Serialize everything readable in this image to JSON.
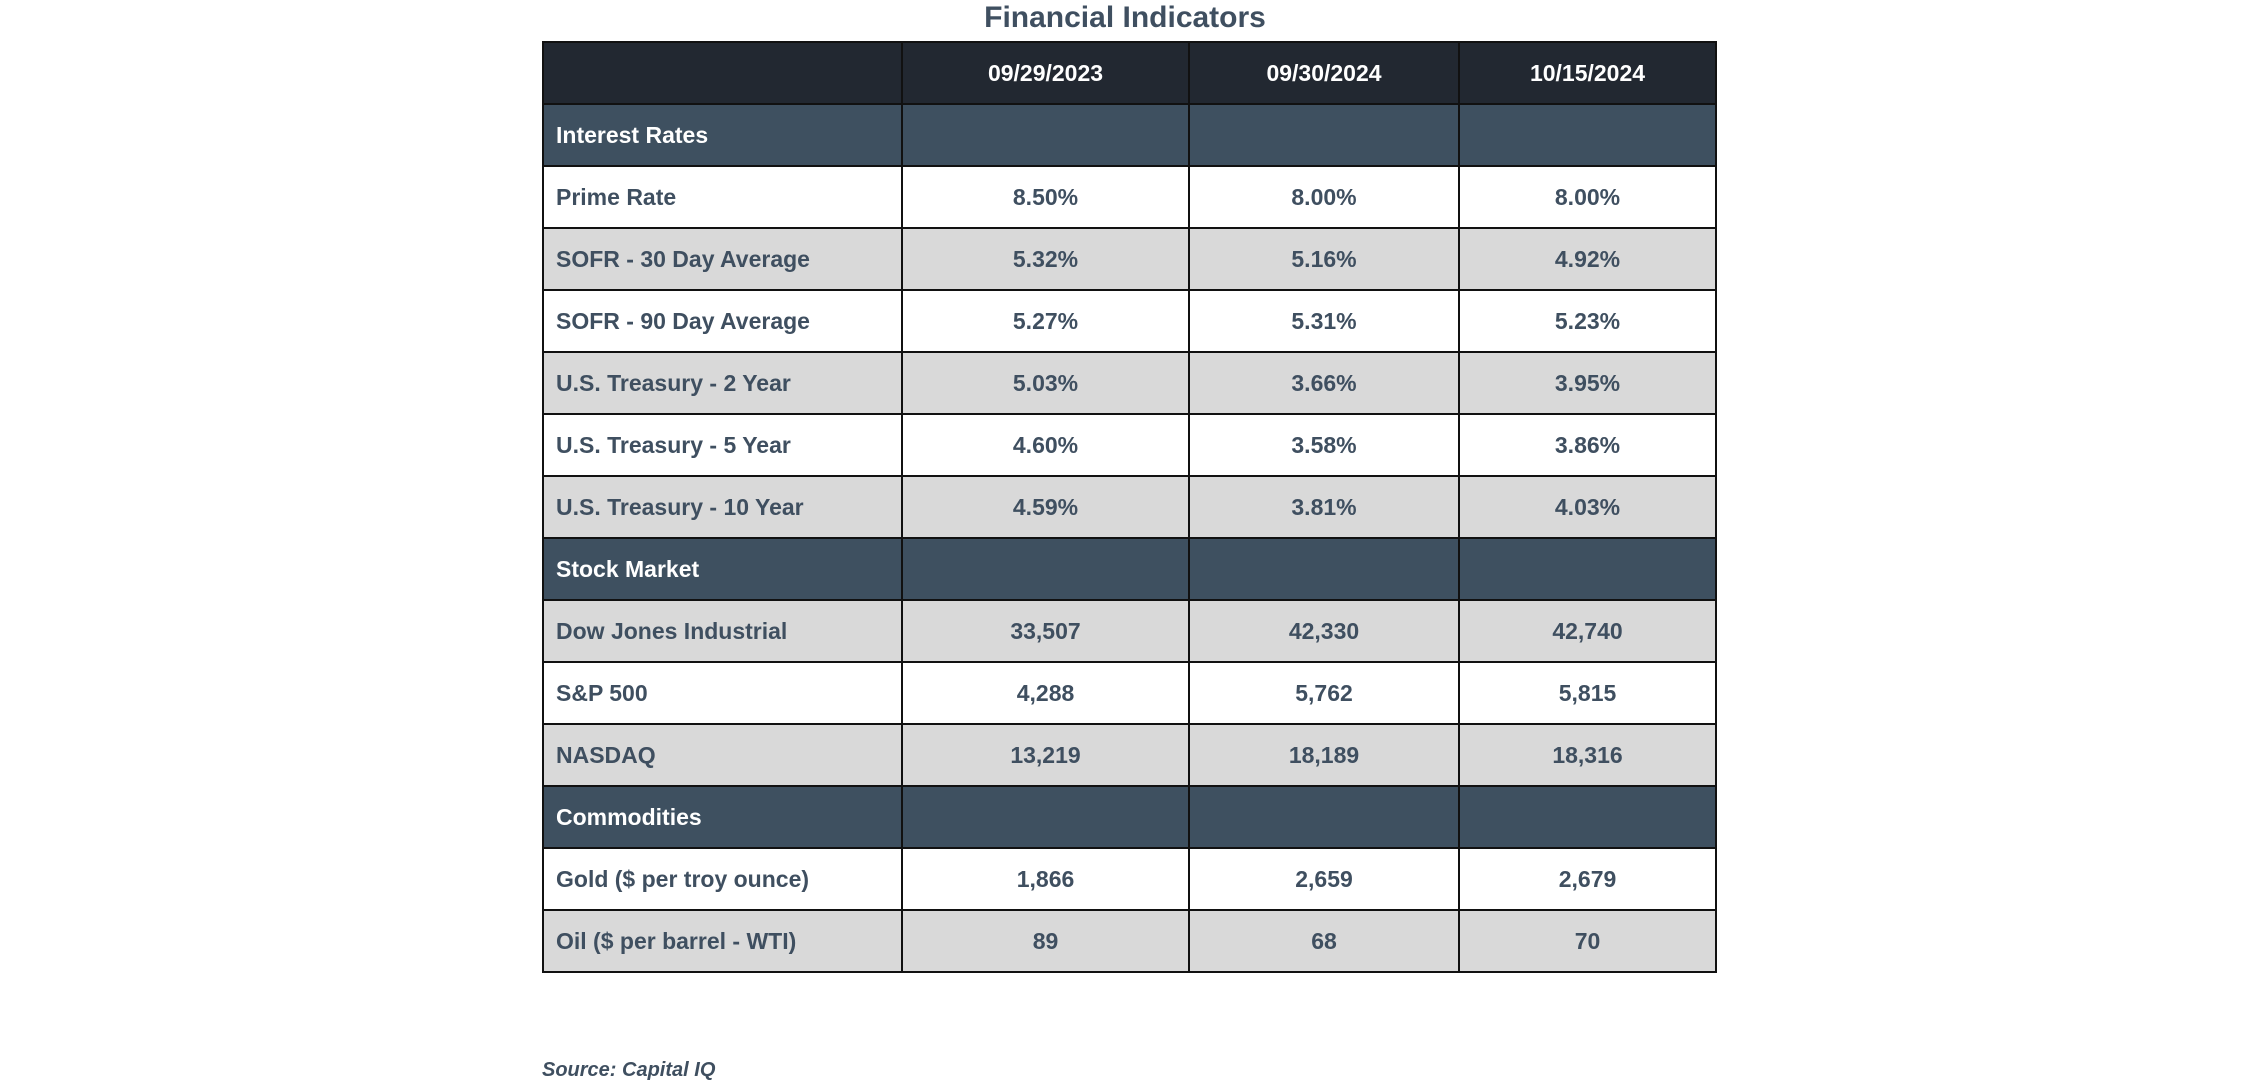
{
  "title": "Financial Indicators",
  "columns": [
    "",
    "09/29/2023",
    "09/30/2024",
    "10/15/2024"
  ],
  "sections": [
    {
      "name": "Interest Rates",
      "rows": [
        {
          "label": "Prime Rate",
          "values": [
            "8.50%",
            "8.00%",
            "8.00%"
          ]
        },
        {
          "label": "SOFR - 30 Day Average",
          "values": [
            "5.32%",
            "5.16%",
            "4.92%"
          ]
        },
        {
          "label": "SOFR - 90 Day Average",
          "values": [
            "5.27%",
            "5.31%",
            "5.23%"
          ]
        },
        {
          "label": "U.S. Treasury - 2 Year",
          "values": [
            "5.03%",
            "3.66%",
            "3.95%"
          ]
        },
        {
          "label": "U.S. Treasury - 5 Year",
          "values": [
            "4.60%",
            "3.58%",
            "3.86%"
          ]
        },
        {
          "label": "U.S. Treasury - 10 Year",
          "values": [
            "4.59%",
            "3.81%",
            "4.03%"
          ]
        }
      ]
    },
    {
      "name": "Stock Market",
      "rows": [
        {
          "label": "Dow Jones Industrial",
          "values": [
            "33,507",
            "42,330",
            "42,740"
          ]
        },
        {
          "label": "S&P 500",
          "values": [
            "4,288",
            "5,762",
            "5,815"
          ]
        },
        {
          "label": "NASDAQ",
          "values": [
            "13,219",
            "18,189",
            "18,316"
          ]
        }
      ]
    },
    {
      "name": "Commodities",
      "rows": [
        {
          "label": "Gold ($ per troy ounce)",
          "values": [
            "1,866",
            "2,659",
            "2,679"
          ]
        },
        {
          "label": "Oil ($ per barrel - WTI)",
          "values": [
            "89",
            "68",
            "70"
          ]
        }
      ]
    }
  ],
  "source": "Source: Capital IQ",
  "colors": {
    "header_bg": "#222831",
    "section_bg": "#3e5060",
    "row_gray": "#d9d9d9",
    "text": "#3f4f60"
  }
}
